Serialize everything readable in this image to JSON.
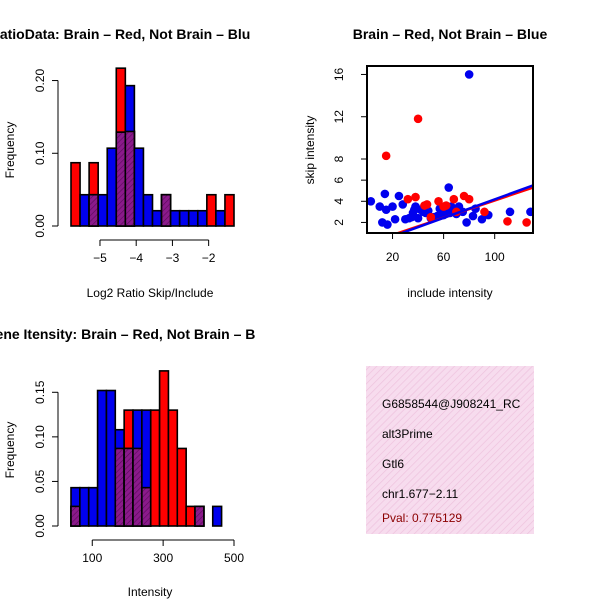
{
  "colors": {
    "red": "#ff0000",
    "blue": "#0000ee",
    "overlap": "#8b1a8b",
    "info_bg": "#f7dcee",
    "info_hatch": "#eec2dd",
    "pval": "#8b0000"
  },
  "chart_data": [
    {
      "type": "bar",
      "title": "RatioData: Brain – Red, Not Brain – Blu",
      "xlabel": "Log2 Ratio Skip/Include",
      "ylabel": "Frequency",
      "xlim": [
        -5.8,
        -1.3
      ],
      "ylim": [
        0,
        0.22
      ],
      "xticks": [
        -5,
        -4,
        -3,
        -2
      ],
      "xtick_labels": [
        "−5",
        "−4",
        "−3",
        "−2"
      ],
      "yticks": [
        0.0,
        0.1,
        0.2
      ],
      "ytick_labels": [
        "0.00",
        "0.10",
        "0.20"
      ],
      "bin_edges": [
        -5.8,
        -5.55,
        -5.3,
        -5.05,
        -4.8,
        -4.55,
        -4.3,
        -4.05,
        -3.8,
        -3.55,
        -3.3,
        -3.05,
        -2.8,
        -2.55,
        -2.3,
        -2.05,
        -1.8,
        -1.55,
        -1.3
      ],
      "series": [
        {
          "name": "Brain",
          "values": [
            0.087,
            0.0,
            0.087,
            0.0,
            0.0,
            0.217,
            0.13,
            0.0,
            0.0,
            0.0,
            0.043,
            0.0,
            0.0,
            0.0,
            0.0,
            0.043,
            0.0,
            0.043
          ]
        },
        {
          "name": "Not Brain",
          "values": [
            0.0,
            0.043,
            0.043,
            0.043,
            0.107,
            0.129,
            0.193,
            0.107,
            0.043,
            0.021,
            0.043,
            0.021,
            0.021,
            0.021,
            0.021,
            0.0,
            0.021,
            0.0
          ]
        }
      ]
    },
    {
      "type": "scatter",
      "title": "Brain – Red, Not Brain – Blue",
      "xlabel": "include intensity",
      "ylabel": "skip intensity",
      "xlim": [
        0,
        130
      ],
      "ylim": [
        1.0,
        16.8
      ],
      "xticks": [
        20,
        60,
        100
      ],
      "xtick_labels": [
        "20",
        "60",
        "100"
      ],
      "yticks": [
        2,
        4,
        6,
        8,
        12,
        16
      ],
      "ytick_labels": [
        "2",
        "4",
        "6",
        "8",
        "12",
        "16"
      ],
      "series": [
        {
          "name": "Not Brain",
          "x": [
            3,
            10,
            12,
            14,
            15,
            16,
            20,
            22,
            25,
            28,
            30,
            33,
            35,
            36,
            37,
            38,
            40,
            42,
            44,
            45,
            46,
            48,
            50,
            52,
            55,
            57,
            60,
            62,
            64,
            65,
            66,
            68,
            70,
            72,
            75,
            78,
            80,
            83,
            85,
            90,
            95,
            112,
            128
          ],
          "y": [
            4.0,
            3.5,
            2.0,
            4.7,
            3.2,
            1.8,
            3.5,
            2.3,
            4.5,
            3.7,
            2.3,
            2.4,
            2.5,
            2.9,
            3.2,
            3.5,
            2.4,
            3.2,
            3.0,
            3.5,
            2.9,
            3.1,
            2.4,
            2.5,
            2.6,
            3.3,
            2.7,
            2.9,
            5.3,
            2.9,
            3.5,
            3.0,
            2.8,
            3.5,
            3.0,
            2.0,
            16.0,
            2.6,
            3.3,
            2.3,
            2.7,
            3.0,
            3.0
          ],
          "fit": {
            "x0": 0,
            "y0": -0.2,
            "x1": 130,
            "y1": 5.5
          }
        },
        {
          "name": "Brain",
          "x": [
            15,
            32,
            38,
            40,
            45,
            47,
            50,
            56,
            60,
            62,
            68,
            70,
            76,
            80,
            92,
            110,
            125
          ],
          "y": [
            8.3,
            4.2,
            4.4,
            11.8,
            3.6,
            3.7,
            2.5,
            4.0,
            3.5,
            3.6,
            4.2,
            3.0,
            4.5,
            4.2,
            3.0,
            2.1,
            2.0
          ],
          "fit": {
            "x0": 0,
            "y0": 0.0,
            "x1": 130,
            "y1": 5.3
          }
        }
      ]
    },
    {
      "type": "bar",
      "title": "Gene Itensity: Brain – Red, Not Brain – B",
      "xlabel": "Intensity",
      "ylabel": "Frequency",
      "xlim": [
        40,
        500
      ],
      "ylim": [
        0,
        0.175
      ],
      "xticks": [
        100,
        300,
        500
      ],
      "xtick_labels": [
        "100",
        "300",
        "500"
      ],
      "yticks": [
        0.0,
        0.05,
        0.1,
        0.15
      ],
      "ytick_labels": [
        "0.00",
        "0.05",
        "0.10",
        "0.15"
      ],
      "bin_edges": [
        40,
        65,
        90,
        115,
        140,
        165,
        190,
        215,
        240,
        265,
        290,
        315,
        340,
        365,
        390,
        415,
        440,
        465,
        490
      ],
      "series": [
        {
          "name": "Brain",
          "values": [
            0.022,
            0.0,
            0.0,
            0.0,
            0.0,
            0.087,
            0.13,
            0.087,
            0.043,
            0.13,
            0.174,
            0.13,
            0.087,
            0.022,
            0.022,
            0.0,
            0.0,
            0.0
          ]
        },
        {
          "name": "Not Brain",
          "values": [
            0.043,
            0.043,
            0.043,
            0.152,
            0.152,
            0.108,
            0.087,
            0.13,
            0.13,
            0.0,
            0.0,
            0.0,
            0.0,
            0.0,
            0.022,
            0.0,
            0.022,
            0.0
          ]
        }
      ]
    }
  ],
  "info": {
    "lines": [
      "G6858544@J908241_RC",
      "alt3Prime",
      "Gtl6",
      "chr1.677−2.11"
    ],
    "pval": "Pval: 0.775129"
  }
}
